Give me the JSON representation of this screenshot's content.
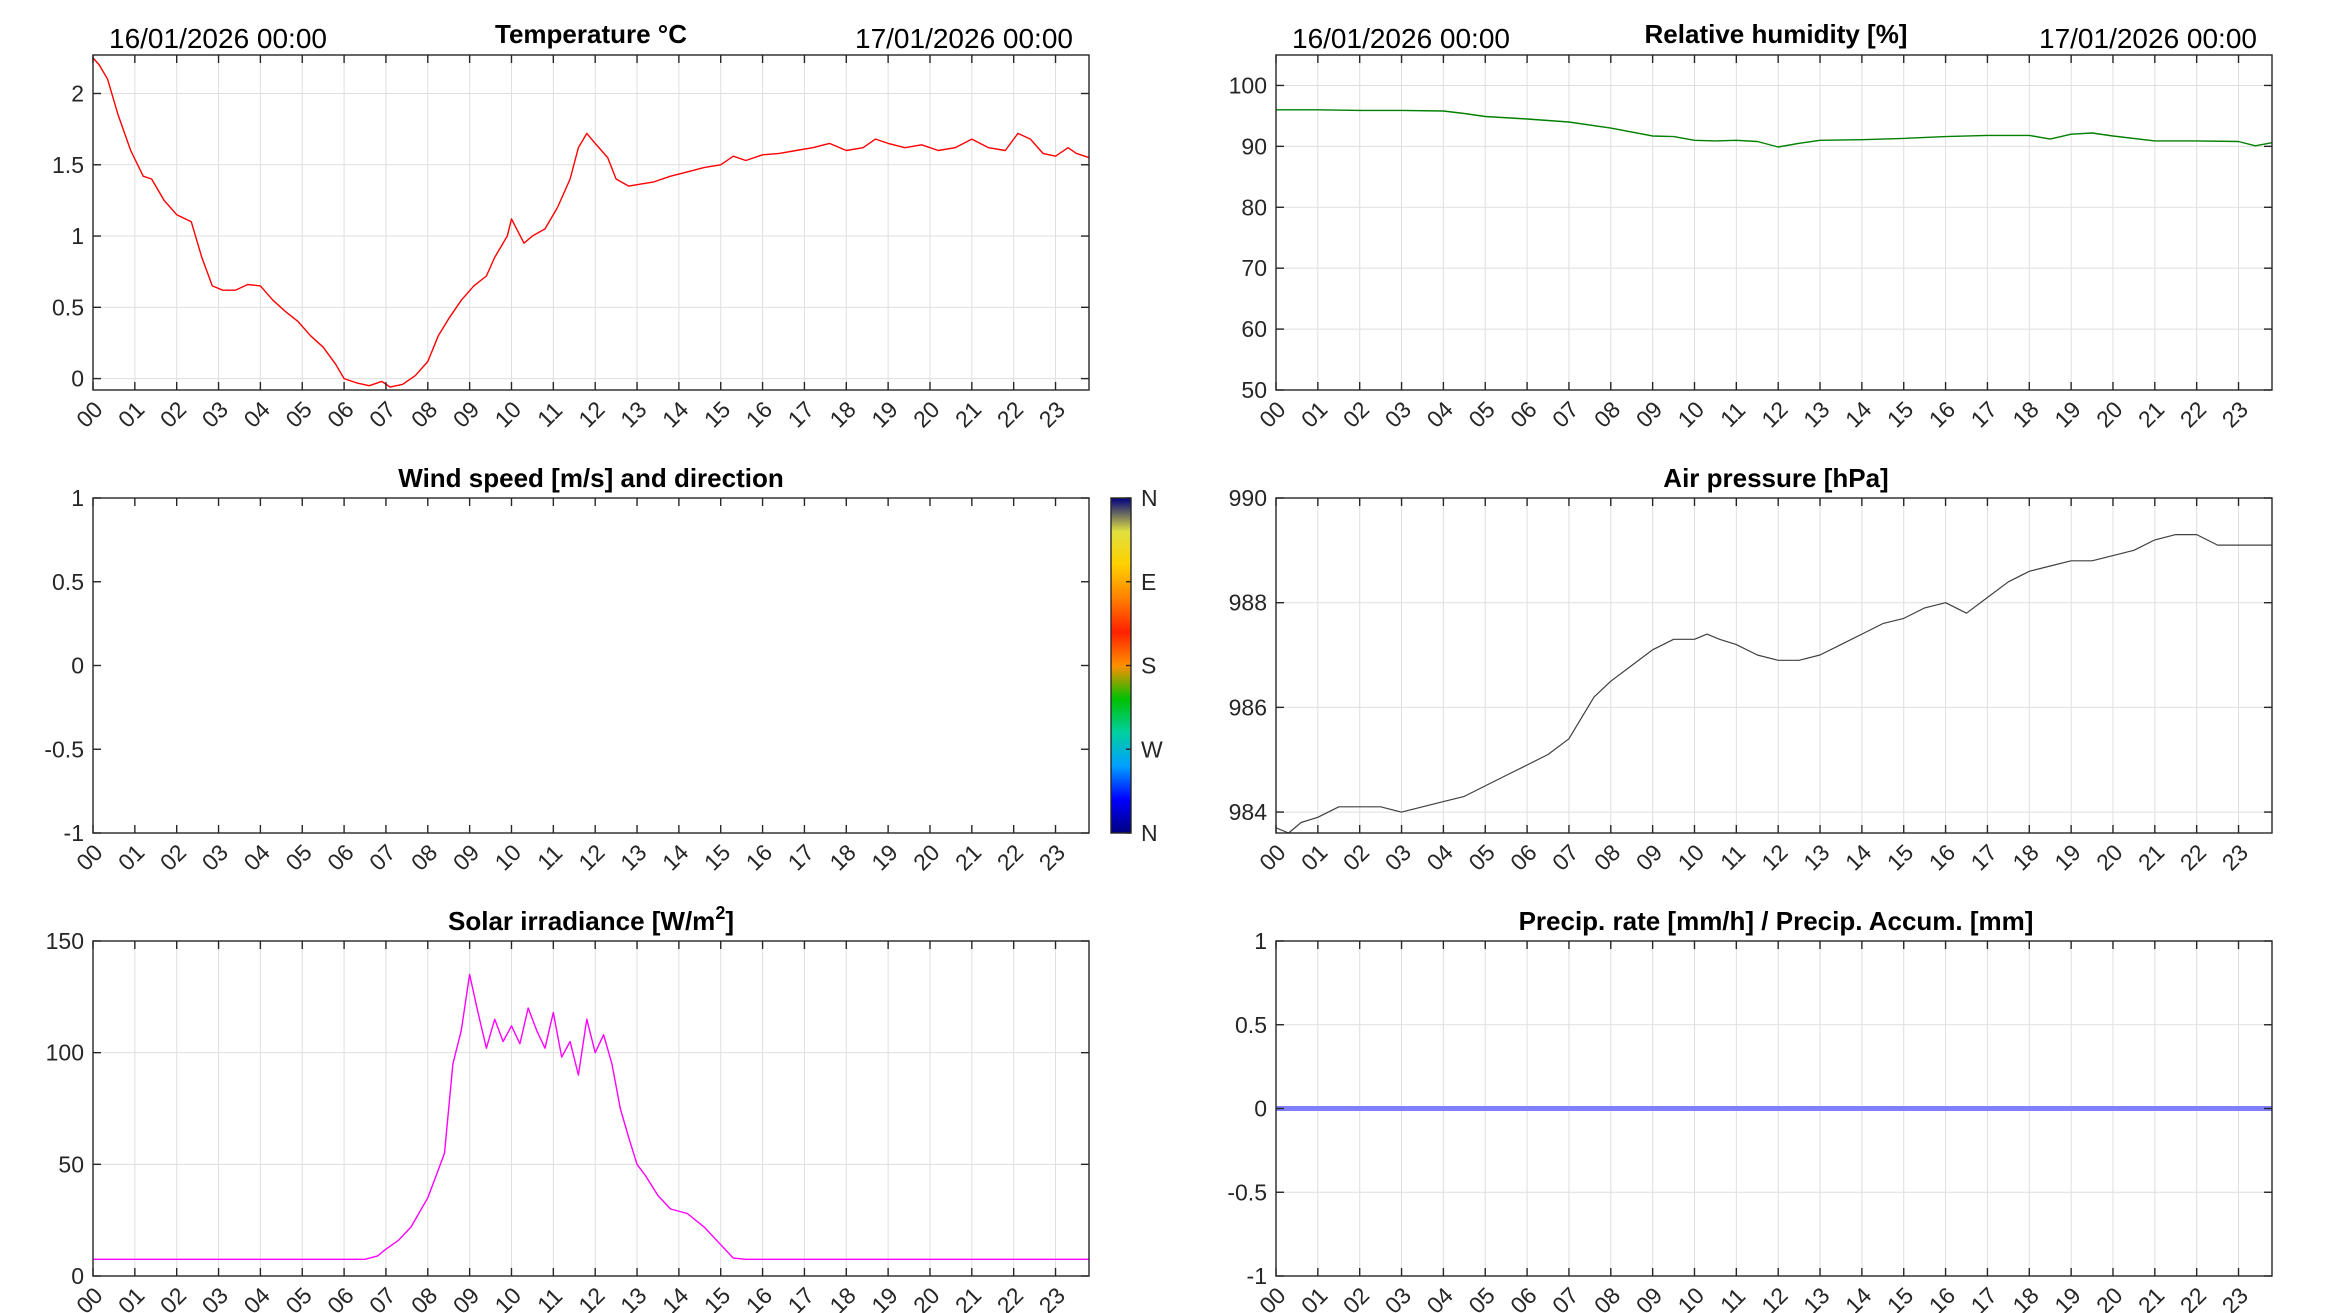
{
  "colors": {
    "temperature": "#ff0000",
    "humidity": "#008000",
    "pressure": "#404040",
    "solar": "#ff00ff",
    "precip": "#7f7fff",
    "grid": "#dfdfdf",
    "axis": "#262626"
  },
  "chart_data": [
    {
      "type": "line",
      "title": "Temperature °C",
      "start_label": "16/01/2026 00:00",
      "end_label": "17/01/2026 00:00",
      "xticks": [
        "00",
        "01",
        "02",
        "03",
        "04",
        "05",
        "06",
        "07",
        "08",
        "09",
        "10",
        "11",
        "12",
        "13",
        "14",
        "15",
        "16",
        "17",
        "18",
        "19",
        "20",
        "21",
        "22",
        "23"
      ],
      "xlim": [
        0,
        23.8
      ],
      "ylim": [
        -0.08,
        2.27
      ],
      "yticks": [
        0,
        0.5,
        1,
        1.5,
        2
      ],
      "ytick_labels": [
        "0",
        "0.5",
        "1",
        "1.5",
        "2"
      ],
      "grid": true,
      "series": [
        {
          "color": "#ff0000",
          "x": [
            0,
            0.15,
            0.35,
            0.6,
            0.9,
            1.2,
            1.4,
            1.7,
            2.0,
            2.35,
            2.6,
            2.85,
            3.1,
            3.4,
            3.7,
            4.0,
            4.3,
            4.6,
            4.9,
            5.2,
            5.5,
            5.8,
            6.0,
            6.3,
            6.6,
            6.9,
            7.1,
            7.4,
            7.7,
            8.0,
            8.25,
            8.5,
            8.8,
            9.1,
            9.4,
            9.6,
            9.9,
            10.0,
            10.3,
            10.5,
            10.8,
            11.1,
            11.4,
            11.6,
            11.8,
            12.0,
            12.3,
            12.5,
            12.8,
            13.0,
            13.4,
            13.8,
            14.2,
            14.6,
            15.0,
            15.3,
            15.6,
            16.0,
            16.4,
            16.8,
            17.2,
            17.6,
            18.0,
            18.4,
            18.7,
            19.0,
            19.4,
            19.8,
            20.2,
            20.6,
            21.0,
            21.4,
            21.8,
            22.1,
            22.4,
            22.7,
            23.0,
            23.3,
            23.5,
            23.8
          ],
          "y": [
            2.25,
            2.2,
            2.1,
            1.85,
            1.6,
            1.42,
            1.4,
            1.25,
            1.15,
            1.1,
            0.85,
            0.65,
            0.62,
            0.62,
            0.66,
            0.65,
            0.55,
            0.47,
            0.4,
            0.3,
            0.22,
            0.1,
            0.0,
            -0.03,
            -0.05,
            -0.02,
            -0.06,
            -0.04,
            0.02,
            0.12,
            0.3,
            0.42,
            0.55,
            0.65,
            0.72,
            0.85,
            1.0,
            1.12,
            0.95,
            1.0,
            1.05,
            1.2,
            1.4,
            1.62,
            1.72,
            1.65,
            1.55,
            1.4,
            1.35,
            1.36,
            1.38,
            1.42,
            1.45,
            1.48,
            1.5,
            1.56,
            1.53,
            1.57,
            1.58,
            1.6,
            1.62,
            1.65,
            1.6,
            1.62,
            1.68,
            1.65,
            1.62,
            1.64,
            1.6,
            1.62,
            1.68,
            1.62,
            1.6,
            1.72,
            1.68,
            1.58,
            1.56,
            1.62,
            1.58,
            1.55
          ]
        }
      ]
    },
    {
      "type": "line",
      "title": "Relative humidity [%]",
      "start_label": "16/01/2026 00:00",
      "end_label": "17/01/2026 00:00",
      "xticks": [
        "00",
        "01",
        "02",
        "03",
        "04",
        "05",
        "06",
        "07",
        "08",
        "09",
        "10",
        "11",
        "12",
        "13",
        "14",
        "15",
        "16",
        "17",
        "18",
        "19",
        "20",
        "21",
        "22",
        "23"
      ],
      "xlim": [
        0,
        23.8
      ],
      "ylim": [
        50,
        105
      ],
      "yticks": [
        50,
        60,
        70,
        80,
        90,
        100
      ],
      "ytick_labels": [
        "50",
        "60",
        "70",
        "80",
        "90",
        "100"
      ],
      "grid": true,
      "series": [
        {
          "color": "#008000",
          "x": [
            0,
            1,
            2,
            3,
            4,
            4.5,
            5,
            6,
            7,
            8,
            9,
            9.5,
            10,
            10.5,
            11,
            11.5,
            12,
            12.5,
            13,
            14,
            15,
            16,
            17,
            18,
            18.5,
            19,
            19.5,
            20,
            21,
            22,
            23,
            23.4,
            23.8
          ],
          "y": [
            96,
            96,
            95.9,
            95.9,
            95.8,
            95.4,
            94.9,
            94.5,
            94,
            93,
            91.7,
            91.6,
            91,
            90.9,
            91,
            90.8,
            89.9,
            90.5,
            91,
            91.1,
            91.3,
            91.6,
            91.8,
            91.8,
            91.2,
            92,
            92.2,
            91.7,
            90.9,
            90.9,
            90.8,
            90.1,
            90.6
          ]
        }
      ]
    },
    {
      "type": "line",
      "title": "Wind speed [m/s] and direction",
      "xticks": [
        "00",
        "01",
        "02",
        "03",
        "04",
        "05",
        "06",
        "07",
        "08",
        "09",
        "10",
        "11",
        "12",
        "13",
        "14",
        "15",
        "16",
        "17",
        "18",
        "19",
        "20",
        "21",
        "22",
        "23"
      ],
      "xlim": [
        0,
        23.8
      ],
      "ylim": [
        -1,
        1
      ],
      "yticks": [
        -1,
        -0.5,
        0,
        0.5,
        1
      ],
      "ytick_labels": [
        "-1",
        "-0.5",
        "0",
        "0.5",
        "1"
      ],
      "grid": false,
      "colorbar": {
        "labels": [
          "N",
          "W",
          "S",
          "E",
          "N"
        ],
        "stops": [
          "#000080",
          "#0000ff",
          "#00a0ff",
          "#00d0a0",
          "#00c000",
          "#ff9000",
          "#ff2000",
          "#ff8000",
          "#ffd000",
          "#e0e040",
          "#000080"
        ]
      },
      "series": []
    },
    {
      "type": "line",
      "title": "Air pressure [hPa]",
      "xticks": [
        "00",
        "01",
        "02",
        "03",
        "04",
        "05",
        "06",
        "07",
        "08",
        "09",
        "10",
        "11",
        "12",
        "13",
        "14",
        "15",
        "16",
        "17",
        "18",
        "19",
        "20",
        "21",
        "22",
        "23"
      ],
      "xlim": [
        0,
        23.8
      ],
      "ylim": [
        983.6,
        990
      ],
      "yticks": [
        984,
        986,
        988,
        990
      ],
      "ytick_labels": [
        "984",
        "986",
        "988",
        "990"
      ],
      "grid": true,
      "series": [
        {
          "color": "#404040",
          "x": [
            0,
            0.3,
            0.6,
            1,
            1.5,
            2,
            2.5,
            3,
            3.5,
            4,
            4.5,
            5,
            5.5,
            6,
            6.5,
            7,
            7.3,
            7.6,
            8,
            8.5,
            9,
            9.5,
            10,
            10.3,
            10.6,
            11,
            11.5,
            12,
            12.5,
            13,
            13.5,
            14,
            14.5,
            15,
            15.5,
            16,
            16.5,
            17,
            17.5,
            18,
            18.5,
            19,
            19.5,
            20,
            20.5,
            21,
            21.5,
            22,
            22.5,
            23,
            23.8
          ],
          "y": [
            983.7,
            983.6,
            983.8,
            983.9,
            984.1,
            984.1,
            984.1,
            984,
            984.1,
            984.2,
            984.3,
            984.5,
            984.7,
            984.9,
            985.1,
            985.4,
            985.8,
            986.2,
            986.5,
            986.8,
            987.1,
            987.3,
            987.3,
            987.4,
            987.3,
            987.2,
            987,
            986.9,
            986.9,
            987,
            987.2,
            987.4,
            987.6,
            987.7,
            987.9,
            988,
            987.8,
            988.1,
            988.4,
            988.6,
            988.7,
            988.8,
            988.8,
            988.9,
            989,
            989.2,
            989.3,
            989.3,
            989.1,
            989.1,
            989.1
          ]
        }
      ]
    },
    {
      "type": "line",
      "title": "Solar irradiance [W/m",
      "title_sup": "2",
      "title_end": "]",
      "xticks": [
        "00",
        "01",
        "02",
        "03",
        "04",
        "05",
        "06",
        "07",
        "08",
        "09",
        "10",
        "11",
        "12",
        "13",
        "14",
        "15",
        "16",
        "17",
        "18",
        "19",
        "20",
        "21",
        "22",
        "23"
      ],
      "xlim": [
        0,
        23.8
      ],
      "ylim": [
        0,
        150
      ],
      "yticks": [
        0,
        50,
        100,
        150
      ],
      "ytick_labels": [
        "0",
        "50",
        "100",
        "150"
      ],
      "grid": true,
      "series": [
        {
          "color": "#ff00ff",
          "x": [
            0,
            2,
            4,
            6,
            6.5,
            6.8,
            7,
            7.3,
            7.6,
            8,
            8.2,
            8.4,
            8.6,
            8.8,
            9.0,
            9.2,
            9.4,
            9.6,
            9.8,
            10.0,
            10.2,
            10.4,
            10.6,
            10.8,
            11.0,
            11.2,
            11.4,
            11.6,
            11.8,
            12.0,
            12.2,
            12.4,
            12.6,
            12.8,
            13.0,
            13.2,
            13.5,
            13.8,
            14.2,
            14.6,
            15.0,
            15.3,
            15.6,
            16,
            18,
            20,
            22,
            23.8
          ],
          "y": [
            7.5,
            7.5,
            7.5,
            7.5,
            7.5,
            9,
            12,
            16,
            22,
            35,
            45,
            55,
            95,
            110,
            135,
            118,
            102,
            115,
            105,
            112,
            104,
            120,
            110,
            102,
            118,
            98,
            105,
            90,
            115,
            100,
            108,
            95,
            75,
            62,
            50,
            45,
            36,
            30,
            28,
            22,
            14,
            8,
            7.5,
            7.5,
            7.5,
            7.5,
            7.5,
            7.5
          ]
        }
      ]
    },
    {
      "type": "line",
      "title": "Precip. rate [mm/h] / Precip. Accum. [mm]",
      "xticks": [
        "00",
        "01",
        "02",
        "03",
        "04",
        "05",
        "06",
        "07",
        "08",
        "09",
        "10",
        "11",
        "12",
        "13",
        "14",
        "15",
        "16",
        "17",
        "18",
        "19",
        "20",
        "21",
        "22",
        "23"
      ],
      "xlim": [
        0,
        23.8
      ],
      "ylim": [
        -1,
        1
      ],
      "yticks": [
        -1,
        -0.5,
        0,
        0.5,
        1
      ],
      "ytick_labels": [
        "-1",
        "-0.5",
        "0",
        "0.5",
        "1"
      ],
      "grid": true,
      "series": [
        {
          "color": "#7f7fff",
          "x": [
            0,
            23.8
          ],
          "y": [
            0,
            0
          ]
        }
      ]
    }
  ]
}
